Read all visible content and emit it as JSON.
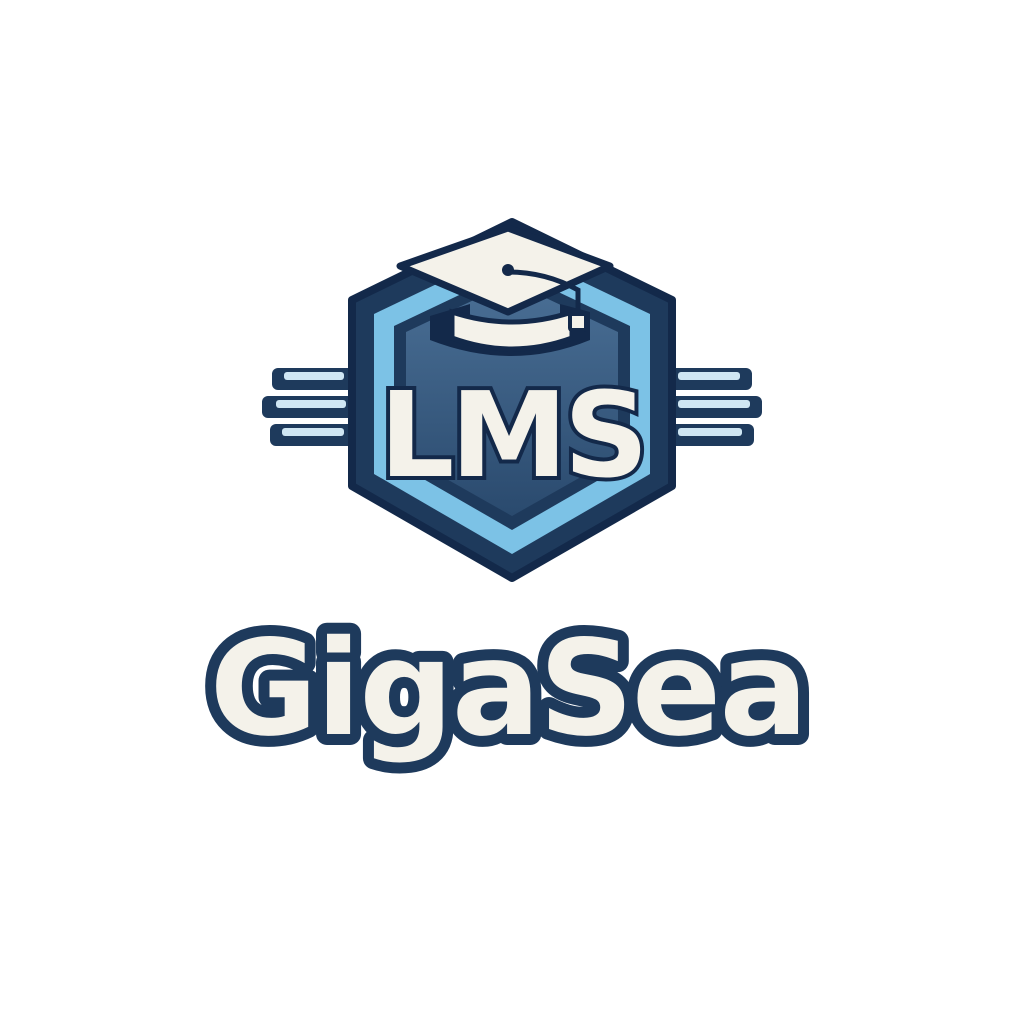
{
  "emblem": {
    "monogram": "LMS",
    "icon": "graduation-cap-icon"
  },
  "wordmark": {
    "text": "GigaSea"
  },
  "colors": {
    "background": "#ffffff",
    "navy": "#1e3a5c",
    "navy_dark": "#13294a",
    "light_blue": "#7cc2e6",
    "steel": "#3d5f82",
    "cream": "#f4f2ea"
  }
}
